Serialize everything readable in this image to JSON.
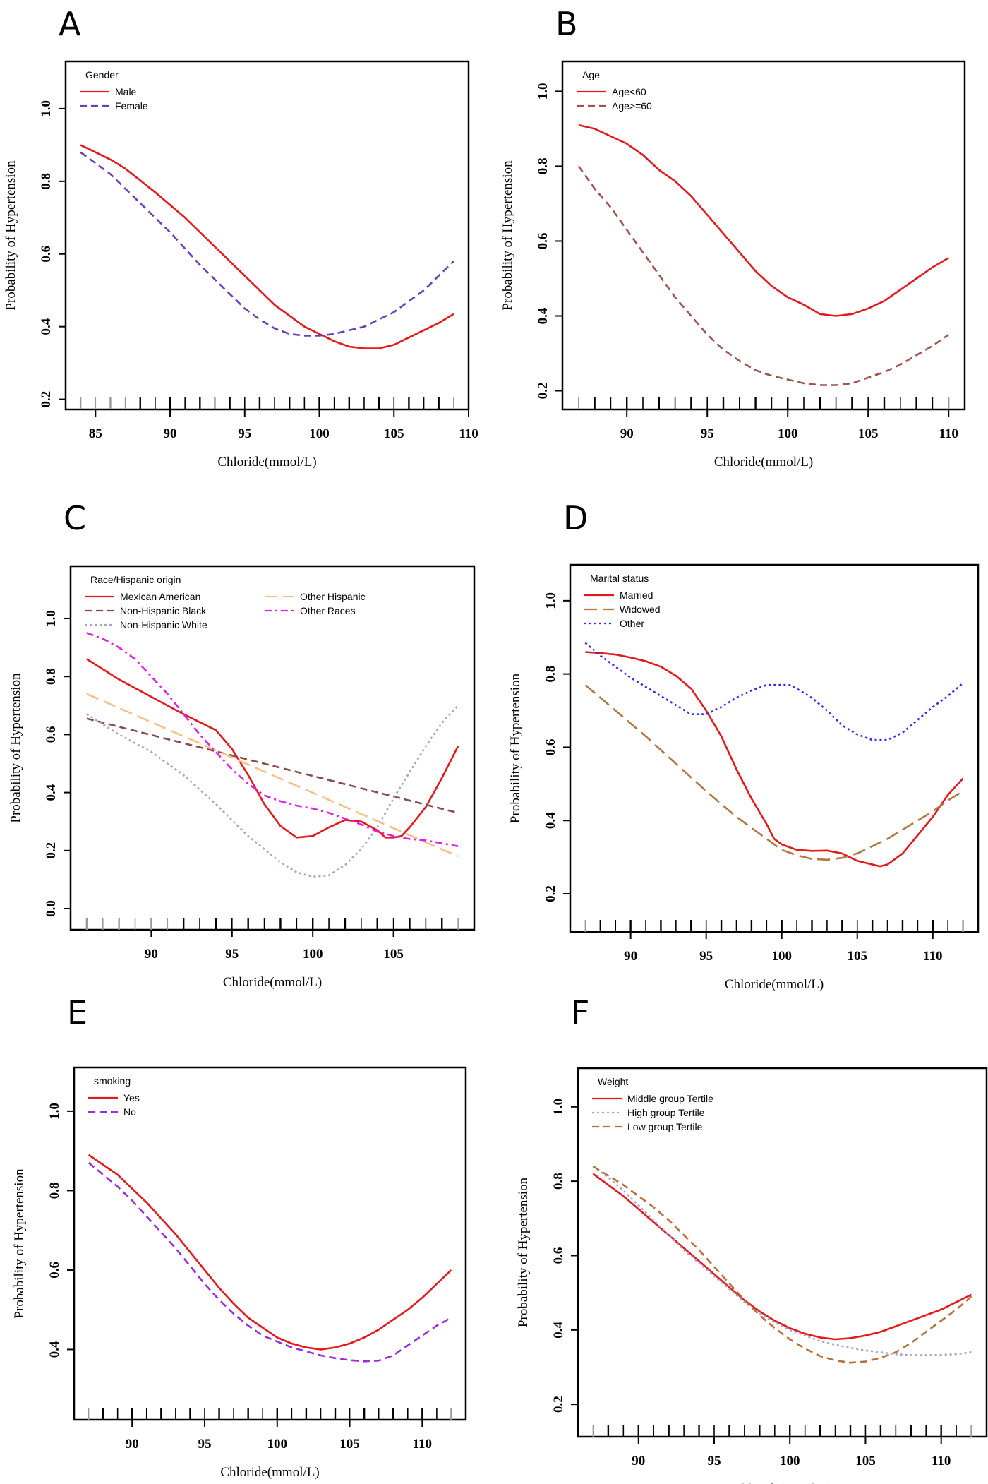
{
  "chart_data": [
    {
      "panel": "A",
      "type": "line",
      "xlabel": "Chloride(mmol/L)",
      "ylabel": "Probability of Hypertension",
      "xlim": [
        83,
        110
      ],
      "ylim": [
        0.172,
        1.13
      ],
      "xticks": [
        85,
        90,
        95,
        100,
        105,
        110
      ],
      "yticks": [
        0.2,
        0.4,
        0.6,
        0.8,
        1.0
      ],
      "legend_title": "Gender",
      "legend_placement": "top-left",
      "grid": false,
      "series": [
        {
          "name": "Male",
          "color": "#e31a1c",
          "style": "solid",
          "x": [
            84,
            85,
            86,
            87,
            89,
            91,
            93,
            95,
            97,
            98,
            99,
            100,
            101,
            102,
            103,
            104,
            105,
            106,
            107,
            108,
            109
          ],
          "y": [
            0.9,
            0.88,
            0.86,
            0.835,
            0.77,
            0.7,
            0.62,
            0.54,
            0.46,
            0.43,
            0.4,
            0.38,
            0.36,
            0.345,
            0.34,
            0.34,
            0.35,
            0.37,
            0.39,
            0.41,
            0.435
          ]
        },
        {
          "name": "Female",
          "color": "#6a3fb5",
          "style": "dashed",
          "x": [
            84,
            86,
            88,
            90,
            92,
            94,
            95,
            96,
            97,
            98,
            99,
            100,
            101,
            102,
            103,
            104,
            105,
            106,
            107,
            108,
            109
          ],
          "y": [
            0.88,
            0.82,
            0.74,
            0.66,
            0.57,
            0.49,
            0.45,
            0.42,
            0.395,
            0.38,
            0.375,
            0.375,
            0.38,
            0.39,
            0.4,
            0.42,
            0.44,
            0.47,
            0.5,
            0.54,
            0.58
          ]
        }
      ]
    },
    {
      "panel": "B",
      "type": "line",
      "xlabel": "Chloride(mmol/L)",
      "ylabel": "Probability of Hypertension",
      "xlim": [
        86,
        111
      ],
      "ylim": [
        0.15,
        1.08
      ],
      "xticks": [
        90,
        95,
        100,
        105,
        110
      ],
      "yticks": [
        0.2,
        0.4,
        0.6,
        0.8,
        1.0
      ],
      "legend_title": "Age",
      "legend_placement": "top-left",
      "grid": false,
      "series": [
        {
          "name": "Age<60",
          "color": "#e31a1c",
          "style": "solid",
          "x": [
            87,
            88,
            89,
            90,
            91,
            92,
            93,
            94,
            95,
            96,
            97,
            98,
            99,
            100,
            101,
            102,
            103,
            104,
            105,
            106,
            107,
            108,
            109,
            110
          ],
          "y": [
            0.91,
            0.9,
            0.88,
            0.86,
            0.83,
            0.79,
            0.76,
            0.72,
            0.67,
            0.62,
            0.57,
            0.52,
            0.48,
            0.45,
            0.43,
            0.405,
            0.4,
            0.405,
            0.42,
            0.44,
            0.47,
            0.5,
            0.53,
            0.555
          ]
        },
        {
          "name": "Age>=60",
          "color": "#a0524f",
          "style": "dashed",
          "x": [
            87,
            88,
            89,
            90,
            91,
            92,
            93,
            94,
            95,
            96,
            97,
            98,
            99,
            100,
            101,
            102,
            103,
            104,
            105,
            106,
            107,
            108,
            109,
            110
          ],
          "y": [
            0.8,
            0.74,
            0.69,
            0.63,
            0.57,
            0.51,
            0.45,
            0.4,
            0.35,
            0.31,
            0.28,
            0.255,
            0.24,
            0.23,
            0.22,
            0.215,
            0.215,
            0.22,
            0.235,
            0.25,
            0.27,
            0.295,
            0.32,
            0.35
          ]
        }
      ]
    },
    {
      "panel": "C",
      "type": "line",
      "xlabel": "Chloride(mmol/L)",
      "ylabel": "Probability of Hypertension",
      "xlim": [
        85,
        110
      ],
      "ylim": [
        -0.073,
        1.18
      ],
      "xticks": [
        90,
        95,
        100,
        105
      ],
      "yticks": [
        0.0,
        0.2,
        0.4,
        0.6,
        0.8,
        1.0
      ],
      "legend_title": "Race/Hispanic origin",
      "legend_placement": "top-left",
      "grid": false,
      "series": [
        {
          "name": "Mexican American",
          "color": "#e31a1c",
          "style": "solid",
          "x": [
            86,
            88,
            90,
            92,
            94,
            95,
            96,
            97,
            98,
            99,
            100,
            101,
            102,
            103,
            104,
            104.5,
            105,
            105.5,
            106,
            107,
            108,
            109
          ],
          "y": [
            0.86,
            0.79,
            0.73,
            0.67,
            0.615,
            0.55,
            0.46,
            0.36,
            0.285,
            0.245,
            0.25,
            0.28,
            0.305,
            0.3,
            0.27,
            0.245,
            0.245,
            0.25,
            0.28,
            0.35,
            0.45,
            0.56
          ]
        },
        {
          "name": "Non-Hispanic Black",
          "color": "#8b4a4a",
          "style": "dashed",
          "x": [
            86,
            109
          ],
          "y": [
            0.655,
            0.33
          ]
        },
        {
          "name": "Non-Hispanic White",
          "color": "#a9a0cc",
          "style": "dotted",
          "x": [
            86,
            88,
            90,
            92,
            94,
            96,
            98,
            99,
            100,
            101,
            102,
            103,
            104,
            105,
            106,
            107,
            108,
            109
          ],
          "y": [
            0.67,
            0.6,
            0.54,
            0.46,
            0.36,
            0.25,
            0.16,
            0.125,
            0.11,
            0.115,
            0.15,
            0.205,
            0.28,
            0.38,
            0.47,
            0.56,
            0.64,
            0.7
          ]
        },
        {
          "name": "Other Hispanic",
          "color": "#f5c08a",
          "style": "longdash",
          "x": [
            86,
            109
          ],
          "y": [
            0.74,
            0.18
          ]
        },
        {
          "name": "Other Races",
          "color": "#e020e8",
          "style": "dashdot",
          "x": [
            86,
            87,
            88,
            89,
            90,
            91,
            92,
            93,
            94,
            95,
            96,
            97,
            98,
            99,
            100,
            101,
            102,
            103,
            104,
            105,
            106,
            107,
            108,
            109
          ],
          "y": [
            0.95,
            0.93,
            0.9,
            0.86,
            0.8,
            0.74,
            0.67,
            0.6,
            0.54,
            0.48,
            0.43,
            0.39,
            0.37,
            0.355,
            0.345,
            0.33,
            0.31,
            0.29,
            0.265,
            0.25,
            0.24,
            0.235,
            0.225,
            0.215
          ]
        }
      ]
    },
    {
      "panel": "D",
      "type": "line",
      "xlabel": "Chloride(mmol/L)",
      "ylabel": "Probability of Hypertension",
      "xlim": [
        86,
        113
      ],
      "ylim": [
        0.096,
        1.098
      ],
      "xticks": [
        90,
        95,
        100,
        105,
        110
      ],
      "yticks": [
        0.2,
        0.4,
        0.6,
        0.8,
        1.0
      ],
      "legend_title": "Marital status",
      "legend_placement": "top-left",
      "grid": false,
      "series": [
        {
          "name": "Married",
          "color": "#e31a1c",
          "style": "solid",
          "x": [
            87,
            88,
            89,
            90,
            91,
            92,
            93,
            94,
            95,
            96,
            97,
            98,
            99,
            99.5,
            100,
            101,
            102,
            103,
            104,
            105,
            106,
            106.5,
            107,
            108,
            109,
            110,
            111,
            112
          ],
          "y": [
            0.86,
            0.857,
            0.853,
            0.845,
            0.835,
            0.82,
            0.795,
            0.76,
            0.7,
            0.63,
            0.54,
            0.46,
            0.39,
            0.35,
            0.335,
            0.32,
            0.317,
            0.318,
            0.31,
            0.29,
            0.28,
            0.275,
            0.28,
            0.31,
            0.36,
            0.41,
            0.47,
            0.515
          ]
        },
        {
          "name": "Widowed",
          "color": "#b07840",
          "style": "longdash",
          "x": [
            87,
            89,
            91,
            93,
            95,
            97,
            99,
            100,
            101,
            102,
            103,
            104,
            105,
            106,
            107,
            108,
            109,
            110,
            111,
            112
          ],
          "y": [
            0.77,
            0.7,
            0.63,
            0.555,
            0.48,
            0.41,
            0.35,
            0.32,
            0.305,
            0.295,
            0.293,
            0.298,
            0.31,
            0.33,
            0.35,
            0.375,
            0.4,
            0.425,
            0.455,
            0.48
          ]
        },
        {
          "name": "Other",
          "color": "#2b2bff",
          "style": "dotted",
          "x": [
            87,
            88,
            89,
            90,
            91,
            92,
            93,
            94,
            95,
            96,
            97,
            98,
            99,
            100,
            100.5,
            101,
            102,
            103,
            104,
            105,
            106,
            107,
            108,
            109,
            110,
            111,
            112
          ],
          "y": [
            0.885,
            0.85,
            0.82,
            0.79,
            0.765,
            0.74,
            0.715,
            0.69,
            0.69,
            0.71,
            0.735,
            0.755,
            0.77,
            0.77,
            0.77,
            0.76,
            0.735,
            0.7,
            0.66,
            0.635,
            0.62,
            0.62,
            0.64,
            0.675,
            0.71,
            0.74,
            0.775
          ]
        }
      ]
    },
    {
      "panel": "E",
      "type": "line",
      "xlabel": "Chloride(mmol/L)",
      "ylabel": "Probability of Hypertension",
      "xlim": [
        86,
        113
      ],
      "ylim": [
        0.223,
        1.11
      ],
      "xticks": [
        90,
        95,
        100,
        105,
        110
      ],
      "yticks": [
        0.4,
        0.6,
        0.8,
        1.0
      ],
      "legend_title": "smoking",
      "legend_placement": "top-left",
      "grid": false,
      "series": [
        {
          "name": "Yes",
          "color": "#e31a1c",
          "style": "solid",
          "x": [
            87,
            88,
            89,
            90,
            91,
            92,
            93,
            94,
            95,
            96,
            97,
            98,
            99,
            100,
            101,
            102,
            103,
            104,
            105,
            106,
            107,
            108,
            109,
            110,
            111,
            112
          ],
          "y": [
            0.89,
            0.865,
            0.84,
            0.805,
            0.77,
            0.73,
            0.69,
            0.645,
            0.6,
            0.555,
            0.515,
            0.48,
            0.455,
            0.43,
            0.415,
            0.405,
            0.4,
            0.405,
            0.415,
            0.43,
            0.45,
            0.475,
            0.5,
            0.53,
            0.565,
            0.6
          ]
        },
        {
          "name": "No",
          "color": "#9a2de0",
          "style": "dashed",
          "x": [
            87,
            88,
            89,
            90,
            91,
            92,
            93,
            94,
            95,
            96,
            97,
            98,
            99,
            100,
            101,
            102,
            103,
            104,
            105,
            106,
            107,
            108,
            109,
            110,
            111,
            112
          ],
          "y": [
            0.87,
            0.84,
            0.81,
            0.775,
            0.735,
            0.695,
            0.655,
            0.61,
            0.565,
            0.525,
            0.49,
            0.46,
            0.435,
            0.42,
            0.405,
            0.395,
            0.385,
            0.378,
            0.373,
            0.37,
            0.372,
            0.385,
            0.41,
            0.435,
            0.46,
            0.48
          ]
        }
      ]
    },
    {
      "panel": "F",
      "type": "line",
      "xlabel": "Chloride(mmol/L)",
      "ylabel": "Probability of Hypertension",
      "xlim": [
        86,
        113
      ],
      "ylim": [
        0.113,
        1.104
      ],
      "xticks": [
        90,
        95,
        100,
        105,
        110
      ],
      "yticks": [
        0.2,
        0.4,
        0.6,
        0.8,
        1.0
      ],
      "legend_title": "Weight",
      "legend_placement": "top-left",
      "grid": false,
      "series": [
        {
          "name": "Middle group Tertile",
          "color": "#e31a1c",
          "style": "solid",
          "x": [
            87,
            88,
            89,
            90,
            91,
            92,
            93,
            94,
            95,
            96,
            97,
            98,
            99,
            100,
            101,
            102,
            103,
            104,
            105,
            106,
            107,
            108,
            109,
            110,
            111,
            112
          ],
          "y": [
            0.82,
            0.79,
            0.76,
            0.725,
            0.69,
            0.655,
            0.62,
            0.585,
            0.55,
            0.515,
            0.48,
            0.45,
            0.425,
            0.405,
            0.39,
            0.38,
            0.375,
            0.378,
            0.385,
            0.395,
            0.41,
            0.425,
            0.44,
            0.455,
            0.475,
            0.495
          ]
        },
        {
          "name": "High group Tertile",
          "color": "#a9a0cc",
          "style": "dotted",
          "x": [
            87,
            88,
            89,
            90,
            91,
            92,
            93,
            94,
            95,
            96,
            97,
            98,
            99,
            100,
            101,
            102,
            103,
            104,
            105,
            106,
            107,
            108,
            109,
            110,
            111,
            112
          ],
          "y": [
            0.84,
            0.81,
            0.775,
            0.735,
            0.695,
            0.655,
            0.615,
            0.58,
            0.545,
            0.51,
            0.475,
            0.445,
            0.42,
            0.4,
            0.385,
            0.37,
            0.36,
            0.352,
            0.345,
            0.34,
            0.335,
            0.332,
            0.332,
            0.333,
            0.335,
            0.34
          ]
        },
        {
          "name": "Low group Tertile",
          "color": "#b5713a",
          "style": "dashed",
          "x": [
            87,
            88,
            89,
            90,
            91,
            92,
            93,
            94,
            95,
            96,
            97,
            98,
            99,
            100,
            101,
            102,
            103,
            104,
            105,
            106,
            107,
            108,
            109,
            110,
            111,
            112
          ],
          "y": [
            0.84,
            0.815,
            0.79,
            0.76,
            0.73,
            0.695,
            0.655,
            0.615,
            0.57,
            0.525,
            0.48,
            0.44,
            0.405,
            0.375,
            0.35,
            0.33,
            0.318,
            0.312,
            0.315,
            0.325,
            0.34,
            0.365,
            0.395,
            0.425,
            0.455,
            0.49
          ]
        }
      ]
    }
  ]
}
